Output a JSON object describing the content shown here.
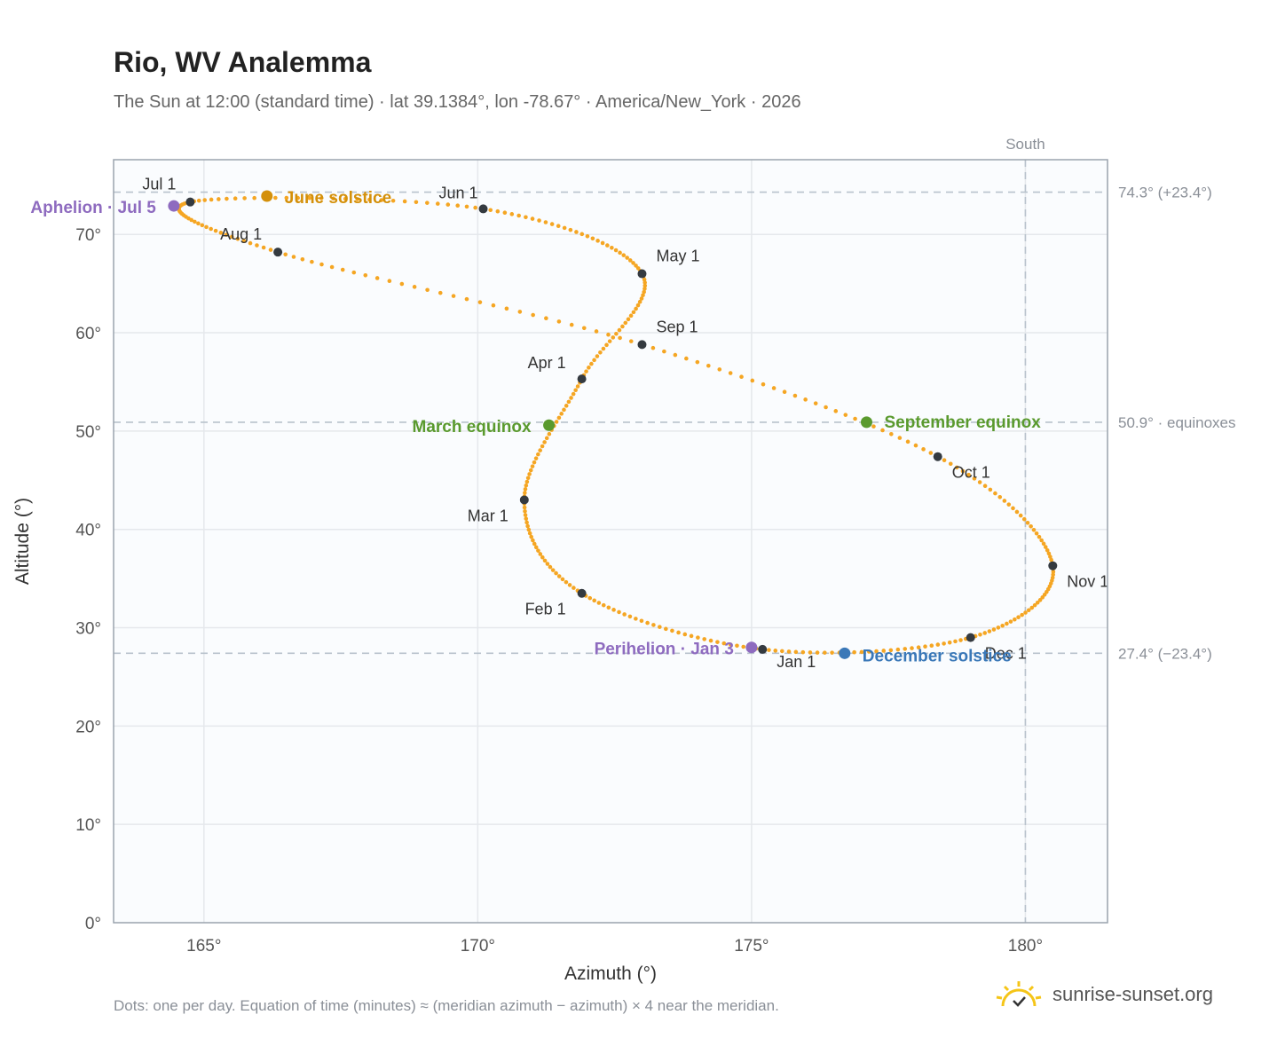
{
  "title": "Rio, WV Analemma",
  "subtitle": "The Sun at 12:00 (standard time) · lat 39.1384°, lon -78.67° · America/New_York · 2026",
  "footnote": "Dots: one per day. Equation of time (minutes) ≈ (meridian azimuth − azimuth) × 4 near the meridian.",
  "brand": {
    "text": "sunrise-sunset.org",
    "icon": "sun-logo-icon"
  },
  "colors": {
    "curve": "#f5a623",
    "month_dot": "#343a40",
    "june_solstice": "#d4900a",
    "december_solstice": "#3a78b8",
    "equinox": "#5a9a2e",
    "perihelion_aphelion": "#8e6bbf",
    "grid": "#e5e8ec",
    "ref_line": "#b8c2cc",
    "plot_bg": "#fafcfe",
    "frame": "#9aa3ad"
  },
  "chart_data": {
    "type": "scatter",
    "xlabel": "Azimuth (°)",
    "ylabel": "Altitude (°)",
    "xlim": [
      163.35,
      181.5
    ],
    "ylim": [
      0,
      77.6
    ],
    "x_ticks": [
      165,
      170,
      175,
      180
    ],
    "x_tick_labels": [
      "165°",
      "170°",
      "175°",
      "180°"
    ],
    "y_ticks": [
      0,
      10,
      20,
      30,
      40,
      50,
      60,
      70
    ],
    "y_tick_labels": [
      "0°",
      "10°",
      "20°",
      "30°",
      "40°",
      "50°",
      "60°",
      "70°"
    ],
    "grid": true,
    "meridian": {
      "azimuth": 180,
      "label": "South"
    },
    "reference_lines": [
      {
        "altitude": 74.3,
        "label": "74.3° (+23.4°)"
      },
      {
        "altitude": 50.9,
        "label": "50.9° · equinoxes"
      },
      {
        "altitude": 27.4,
        "label": "27.4° (−23.4°)"
      }
    ],
    "months": [
      {
        "label": "Jan 1",
        "az": 175.2,
        "alt": 27.8
      },
      {
        "label": "Feb 1",
        "az": 171.9,
        "alt": 33.5
      },
      {
        "label": "Mar 1",
        "az": 170.85,
        "alt": 43.0
      },
      {
        "label": "Apr 1",
        "az": 171.9,
        "alt": 55.3
      },
      {
        "label": "May 1",
        "az": 173.0,
        "alt": 66.0
      },
      {
        "label": "Jun 1",
        "az": 170.1,
        "alt": 72.6
      },
      {
        "label": "Jul 1",
        "az": 164.75,
        "alt": 73.3
      },
      {
        "label": "Aug 1",
        "az": 166.35,
        "alt": 68.2
      },
      {
        "label": "Sep 1",
        "az": 173.0,
        "alt": 58.8
      },
      {
        "label": "Oct 1",
        "az": 178.4,
        "alt": 47.4
      },
      {
        "label": "Nov 1",
        "az": 180.5,
        "alt": 36.3
      },
      {
        "label": "Dec 1",
        "az": 179.0,
        "alt": 29.0
      }
    ],
    "events": [
      {
        "label": "June solstice",
        "az": 166.15,
        "alt": 73.9,
        "kind": "june_solstice"
      },
      {
        "label": "December solstice",
        "az": 176.7,
        "alt": 27.4,
        "kind": "december_solstice"
      },
      {
        "label": "March equinox",
        "az": 171.3,
        "alt": 50.6,
        "kind": "equinox"
      },
      {
        "label": "September equinox",
        "az": 177.1,
        "alt": 50.9,
        "kind": "equinox"
      },
      {
        "label": "Perihelion · Jan 3",
        "az": 175.0,
        "alt": 28.0,
        "kind": "perihelion_aphelion"
      },
      {
        "label": "Aphelion · Jul 5",
        "az": 164.45,
        "alt": 72.9,
        "kind": "perihelion_aphelion"
      }
    ]
  }
}
